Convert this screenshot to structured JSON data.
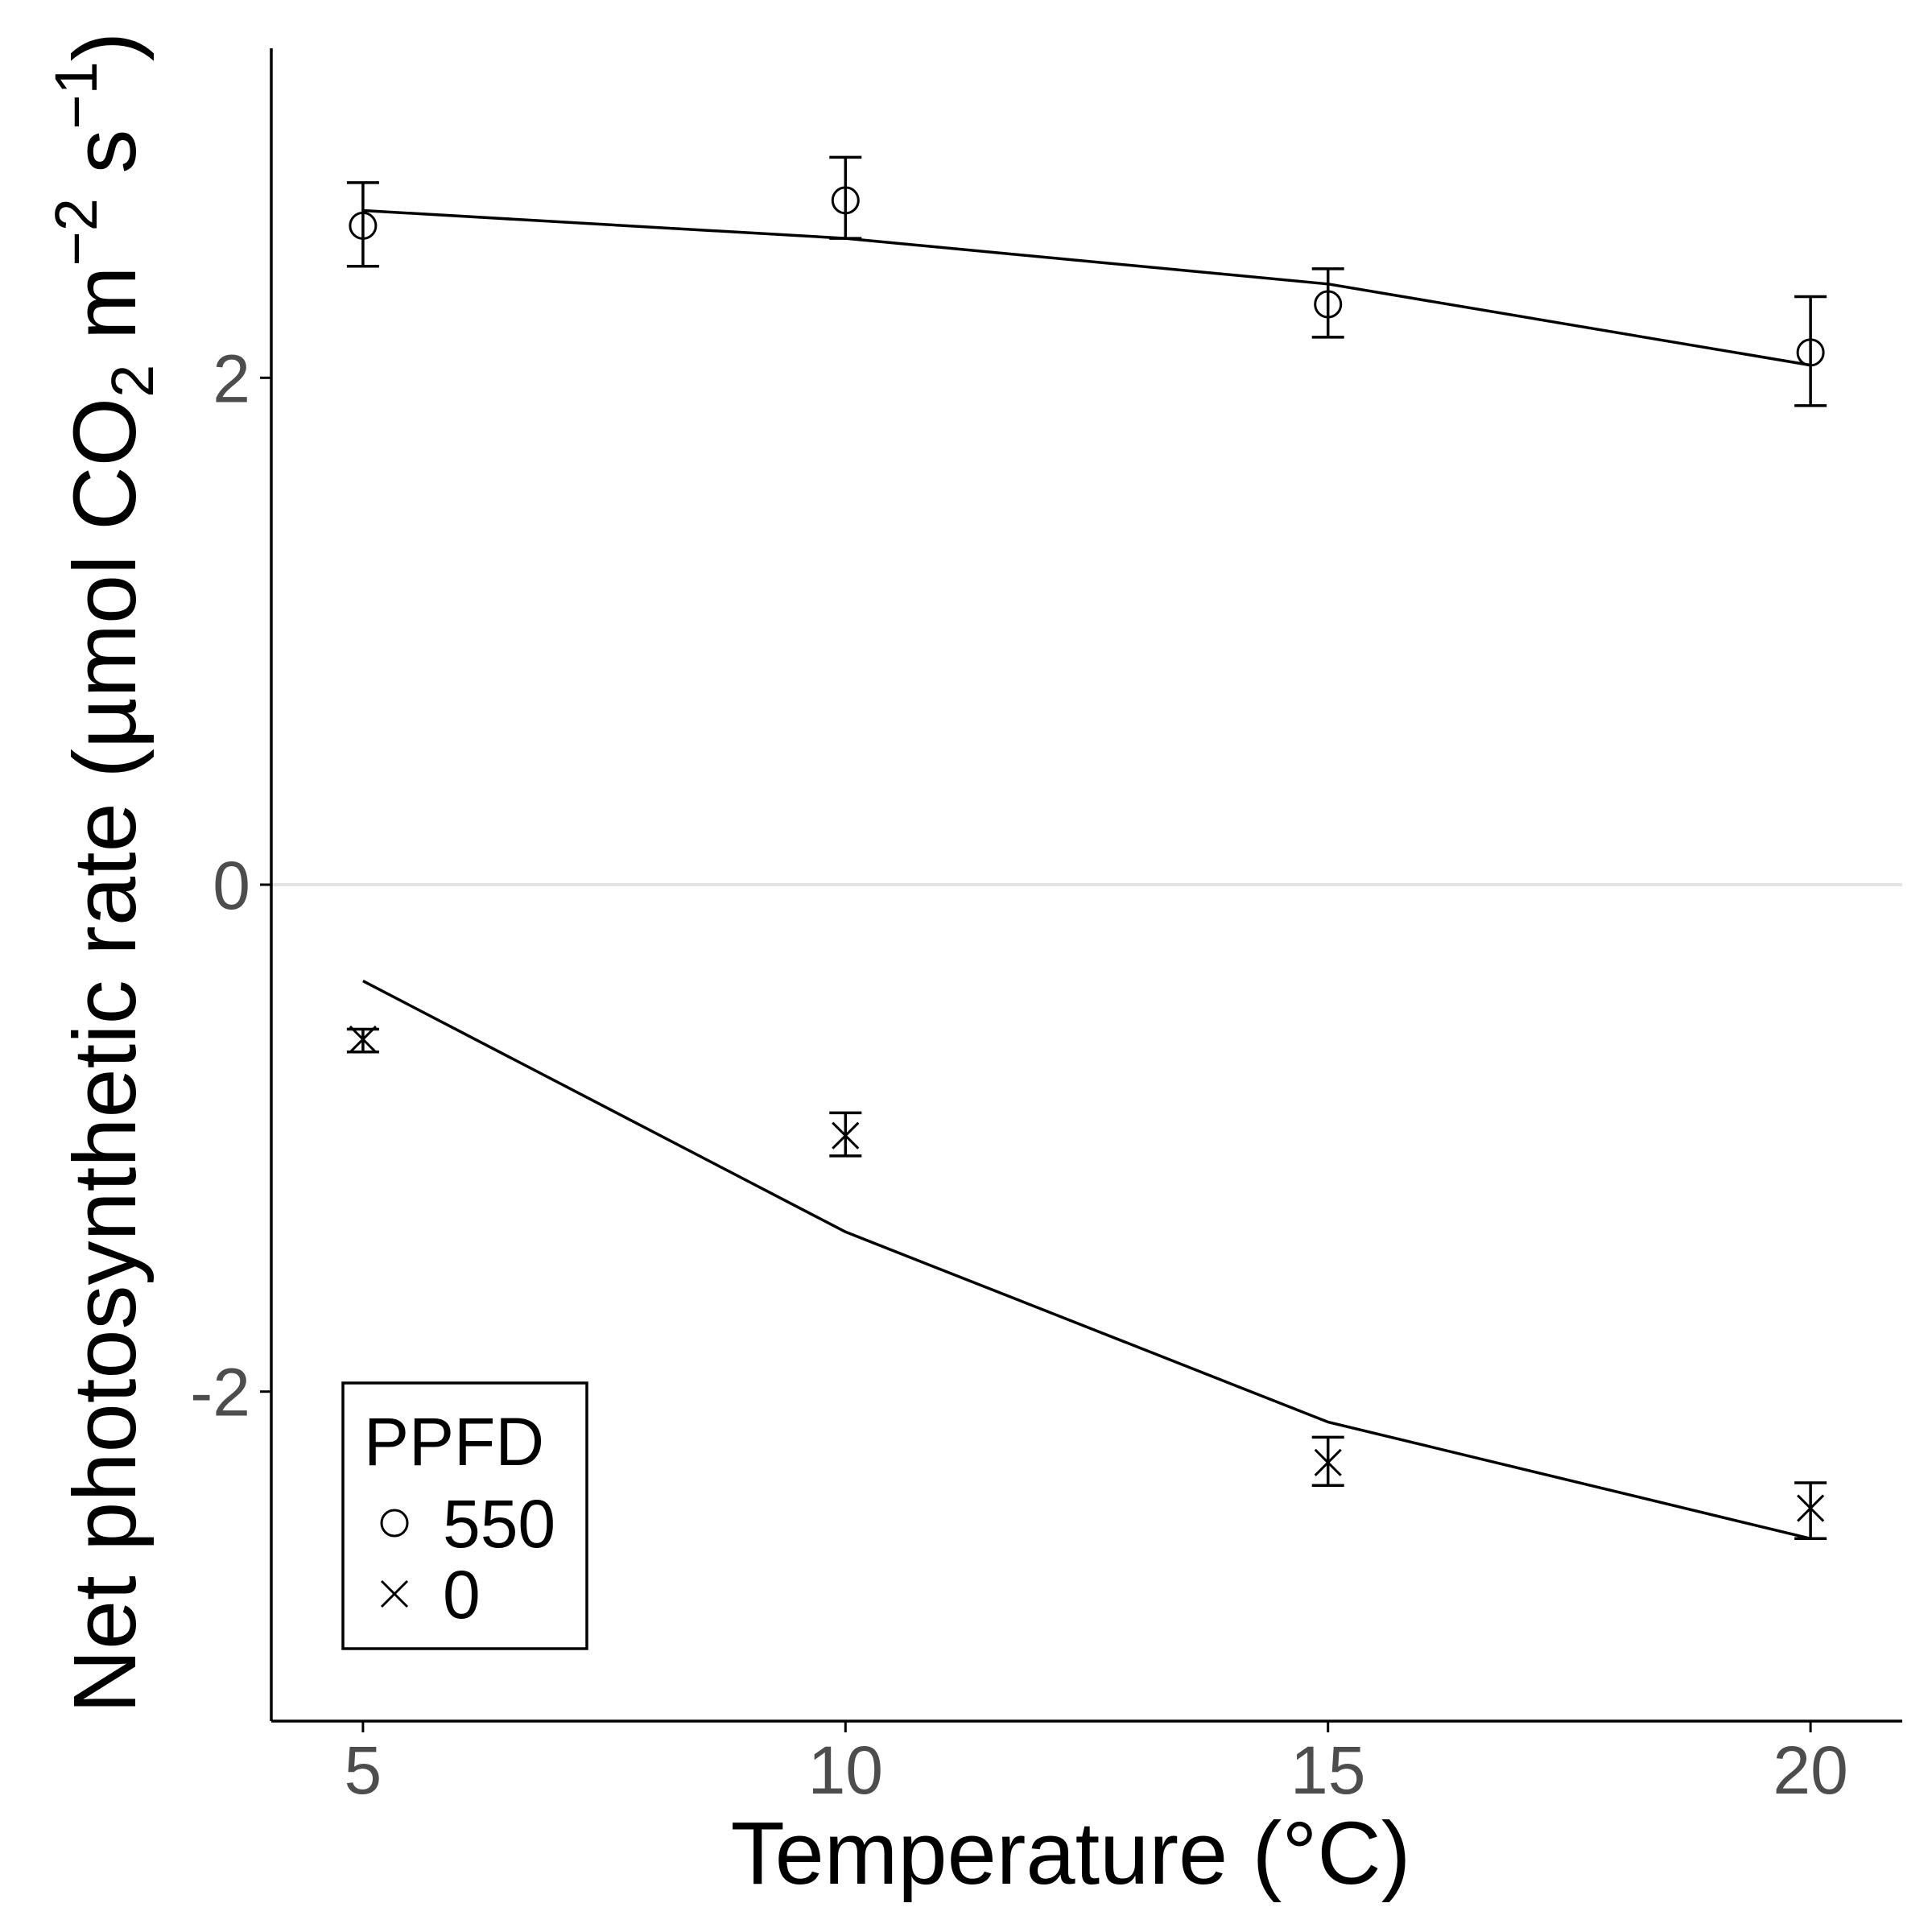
{
  "chart_data": {
    "type": "scatter",
    "xlabel": "Temperature (°C)",
    "ylabel": {
      "prefix": "Net photosynthetic rate (µmol CO",
      "sub": "2",
      "mid1": " m",
      "sup1": "−2",
      "mid2": " s",
      "sup2": "−1",
      "suffix": ")"
    },
    "xlim": [
      4.05,
      20.95
    ],
    "ylim": [
      -3.3,
      3.3
    ],
    "x_ticks": [
      {
        "value": 5,
        "label": "5"
      },
      {
        "value": 10,
        "label": "10"
      },
      {
        "value": 15,
        "label": "15"
      },
      {
        "value": 20,
        "label": "20"
      }
    ],
    "y_ticks": [
      {
        "value": -2,
        "label": "-2"
      },
      {
        "value": 0,
        "label": "0"
      },
      {
        "value": 2,
        "label": "2"
      }
    ],
    "zero_line": true,
    "grid": false,
    "legend": {
      "title": "PPFD",
      "position": "bottom-left",
      "entries": [
        {
          "label": "550",
          "marker": "circle"
        },
        {
          "label": "0",
          "marker": "cross"
        }
      ]
    },
    "series": [
      {
        "name": "550",
        "marker": "circle",
        "points": [
          {
            "x": 5,
            "y": 2.6,
            "lo": 2.44,
            "hi": 2.77
          },
          {
            "x": 10,
            "y": 2.7,
            "lo": 2.55,
            "hi": 2.87
          },
          {
            "x": 15,
            "y": 2.29,
            "lo": 2.16,
            "hi": 2.43
          },
          {
            "x": 20,
            "y": 2.1,
            "lo": 1.89,
            "hi": 2.32
          }
        ],
        "fit": {
          "x": [
            5,
            10,
            15,
            20
          ],
          "y": [
            2.66,
            2.55,
            2.37,
            2.05
          ]
        }
      },
      {
        "name": "0",
        "marker": "cross",
        "points": [
          {
            "x": 5,
            "y": -0.61,
            "lo": -0.66,
            "hi": -0.57
          },
          {
            "x": 10,
            "y": -0.99,
            "lo": -1.07,
            "hi": -0.9
          },
          {
            "x": 15,
            "y": -2.28,
            "lo": -2.37,
            "hi": -2.18
          },
          {
            "x": 20,
            "y": -2.46,
            "lo": -2.58,
            "hi": -2.36
          }
        ],
        "fit": {
          "x": [
            5,
            10,
            15,
            20
          ],
          "y": [
            -0.38,
            -1.37,
            -2.12,
            -2.58
          ]
        }
      }
    ]
  }
}
